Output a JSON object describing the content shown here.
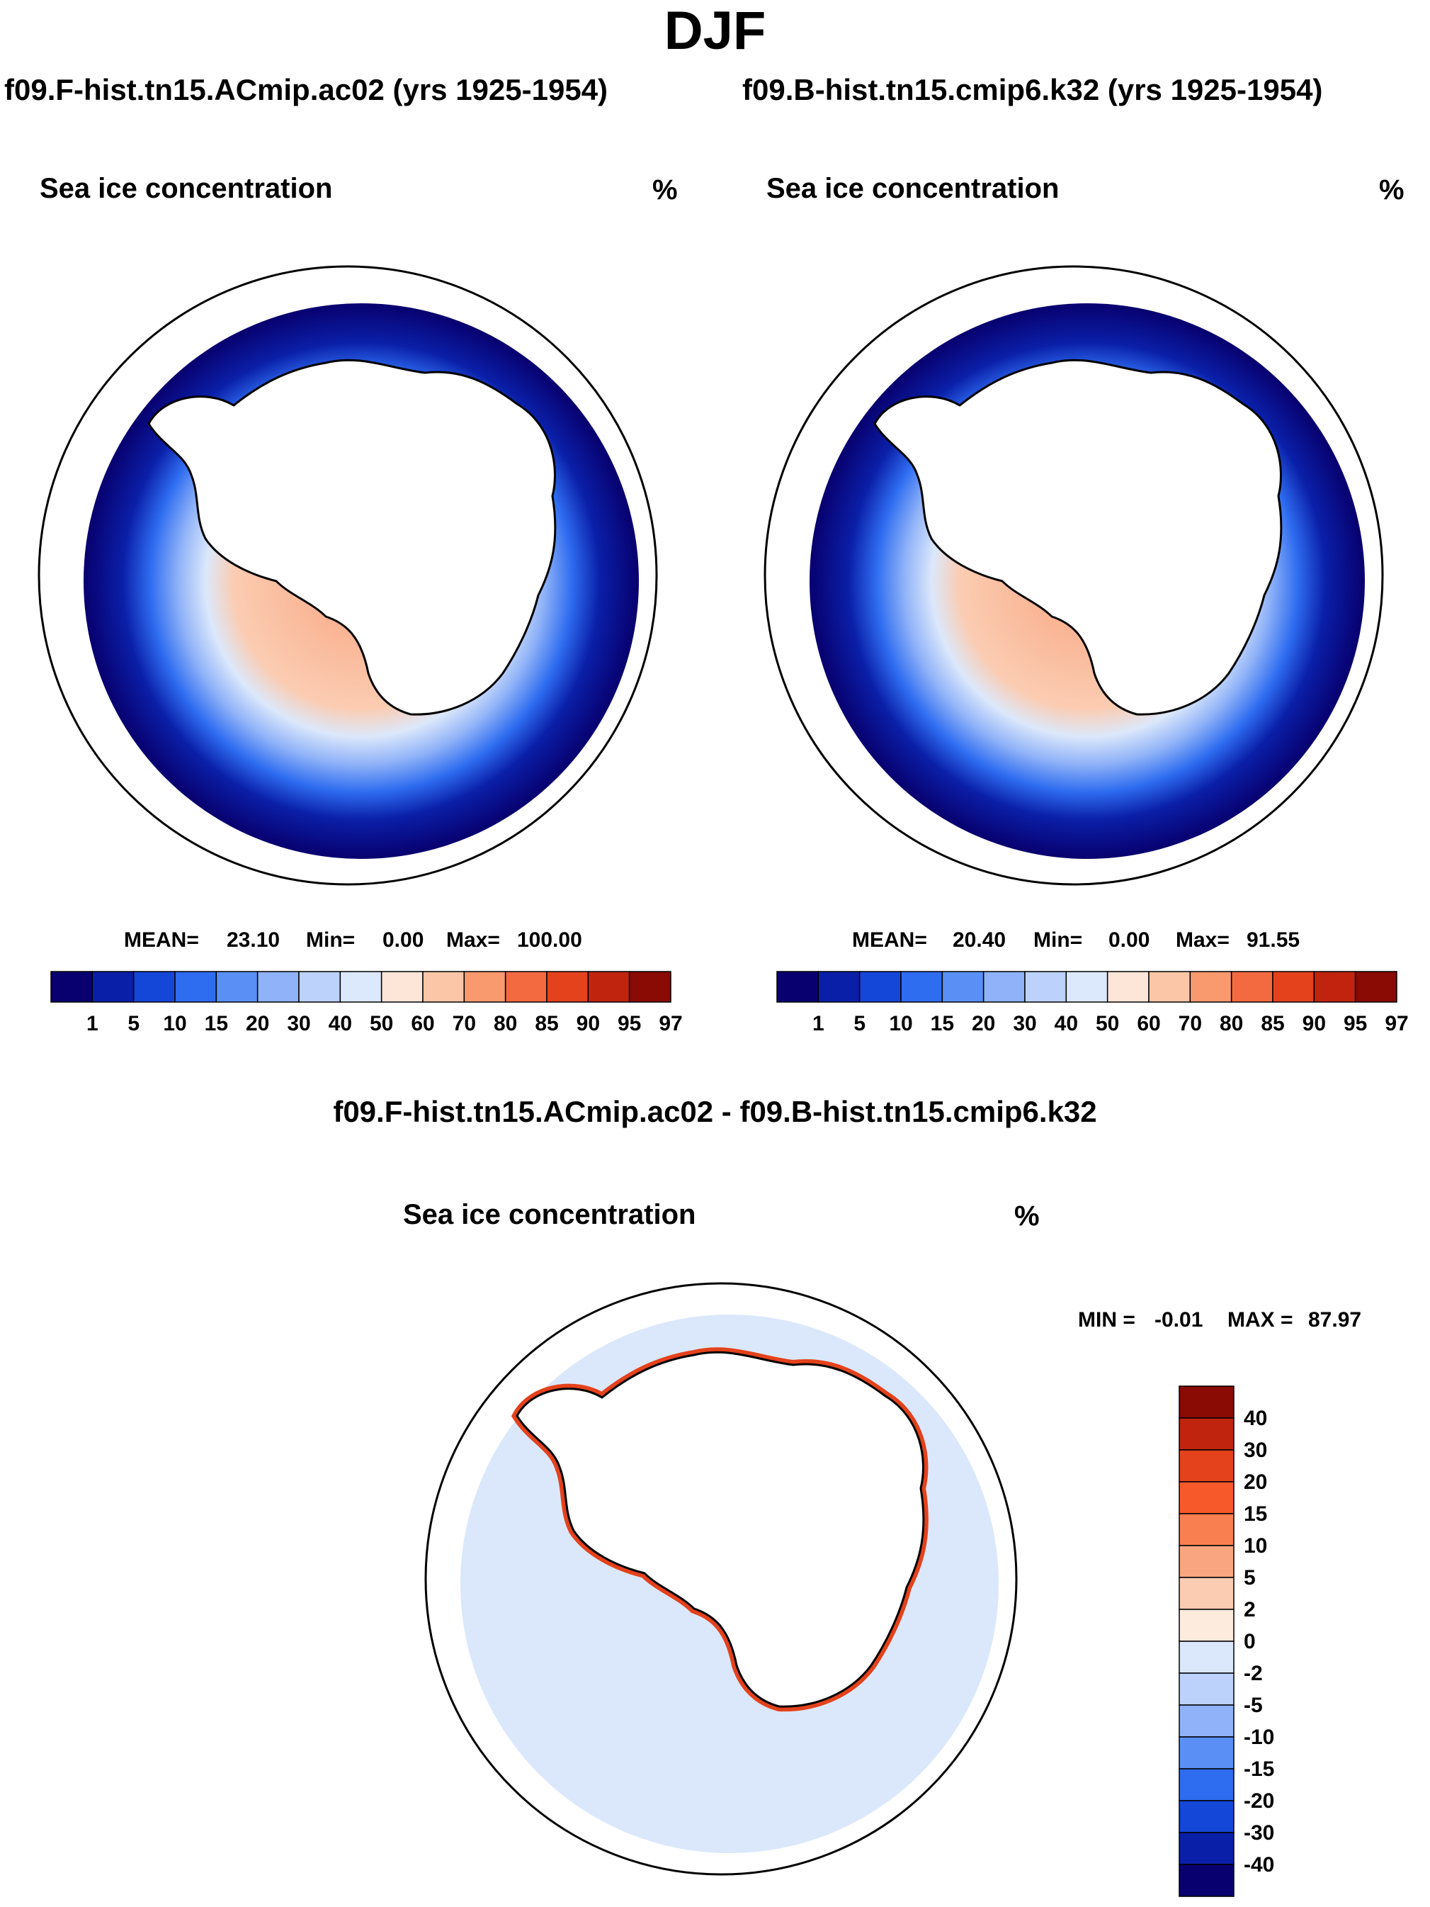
{
  "title": "DJF",
  "panels": {
    "left": {
      "case": "f09.F-hist.tn15.ACmip.ac02 (yrs 1925-1954)",
      "variable": "Sea ice concentration",
      "units": "%",
      "stats": {
        "mean_label": "MEAN=",
        "mean": "23.10",
        "min_label": "Min=",
        "min": "0.00",
        "max_label": "Max=",
        "max": "100.00"
      }
    },
    "right": {
      "case": "f09.B-hist.tn15.cmip6.k32 (yrs 1925-1954)",
      "variable": "Sea ice concentration",
      "units": "%",
      "stats": {
        "mean_label": "MEAN=",
        "mean": "20.40",
        "min_label": "Min=",
        "min": "0.00",
        "max_label": "Max=",
        "max": "91.55"
      }
    },
    "diff": {
      "title": "f09.F-hist.tn15.ACmip.ac02 - f09.B-hist.tn15.cmip6.k32",
      "variable": "Sea ice concentration",
      "units": "%",
      "stats": {
        "min_label": "MIN =",
        "min": "-0.01",
        "max_label": "MAX =",
        "max": "87.97"
      }
    }
  },
  "colorbars": {
    "concentration": {
      "labels": [
        "1",
        "5",
        "10",
        "15",
        "20",
        "30",
        "40",
        "50",
        "60",
        "70",
        "80",
        "85",
        "90",
        "95",
        "97"
      ],
      "colors": [
        "#08006e",
        "#0a1fa8",
        "#1446d8",
        "#2e6cf0",
        "#5a90f5",
        "#8fb2f8",
        "#bcd2fa",
        "#dce8fb",
        "#fde6d8",
        "#fbc6a8",
        "#f8996e",
        "#f36a40",
        "#e4421c",
        "#c0240e",
        "#8a0a04"
      ]
    },
    "difference": {
      "labels": [
        "40",
        "30",
        "20",
        "15",
        "10",
        "5",
        "2",
        "0",
        "-2",
        "-5",
        "-10",
        "-15",
        "-20",
        "-30",
        "-40"
      ],
      "colors": [
        "#8a0a04",
        "#c0240e",
        "#e4421c",
        "#f8592b",
        "#f97f50",
        "#f9a580",
        "#fbccb2",
        "#fdebdd",
        "#dbe8fb",
        "#bcd2fa",
        "#8fb2f8",
        "#5a90f5",
        "#2e6cf0",
        "#1446d8",
        "#0a1fa8",
        "#08006e"
      ]
    }
  }
}
